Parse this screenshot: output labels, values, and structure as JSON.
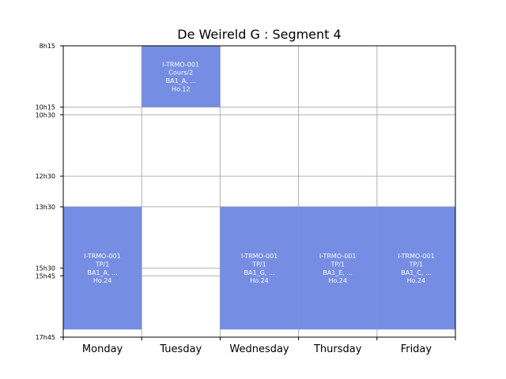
{
  "chart_data": {
    "type": "timetable",
    "title": "De Weireld G : Segment 4",
    "days": [
      "Monday",
      "Tuesday",
      "Wednesday",
      "Thursday",
      "Friday"
    ],
    "time_ticks": [
      {
        "label": "8h15",
        "minutes": 495
      },
      {
        "label": "10h15",
        "minutes": 615
      },
      {
        "label": "10h30",
        "minutes": 630
      },
      {
        "label": "12h30",
        "minutes": 750
      },
      {
        "label": "13h30",
        "minutes": 810
      },
      {
        "label": "15h30",
        "minutes": 930
      },
      {
        "label": "15h45",
        "minutes": 945
      },
      {
        "label": "17h45",
        "minutes": 1065
      }
    ],
    "ylim_minutes": [
      495,
      1065
    ],
    "grid": true,
    "event_color": "#758de2",
    "events": [
      {
        "day": 1,
        "start": 495,
        "end": 615,
        "lines": [
          "I-TRMO-001",
          "Cours/2",
          "BA1_A, ...",
          "Ho.12"
        ]
      },
      {
        "day": 0,
        "start": 810,
        "end": 1050,
        "lines": [
          "I-TRMO-001",
          "TP/1",
          "BA1_A, ...",
          "Ho.24"
        ]
      },
      {
        "day": 2,
        "start": 810,
        "end": 1050,
        "lines": [
          "I-TRMO-001",
          "TP/1",
          "BA1_G, ...",
          "Ho.24"
        ]
      },
      {
        "day": 3,
        "start": 810,
        "end": 1050,
        "lines": [
          "I-TRMO-001",
          "TP/1",
          "BA1_E, ...",
          "Ho.24"
        ]
      },
      {
        "day": 4,
        "start": 810,
        "end": 1050,
        "lines": [
          "I-TRMO-001",
          "TP/1",
          "BA1_C, ...",
          "Ho.24"
        ]
      }
    ]
  }
}
